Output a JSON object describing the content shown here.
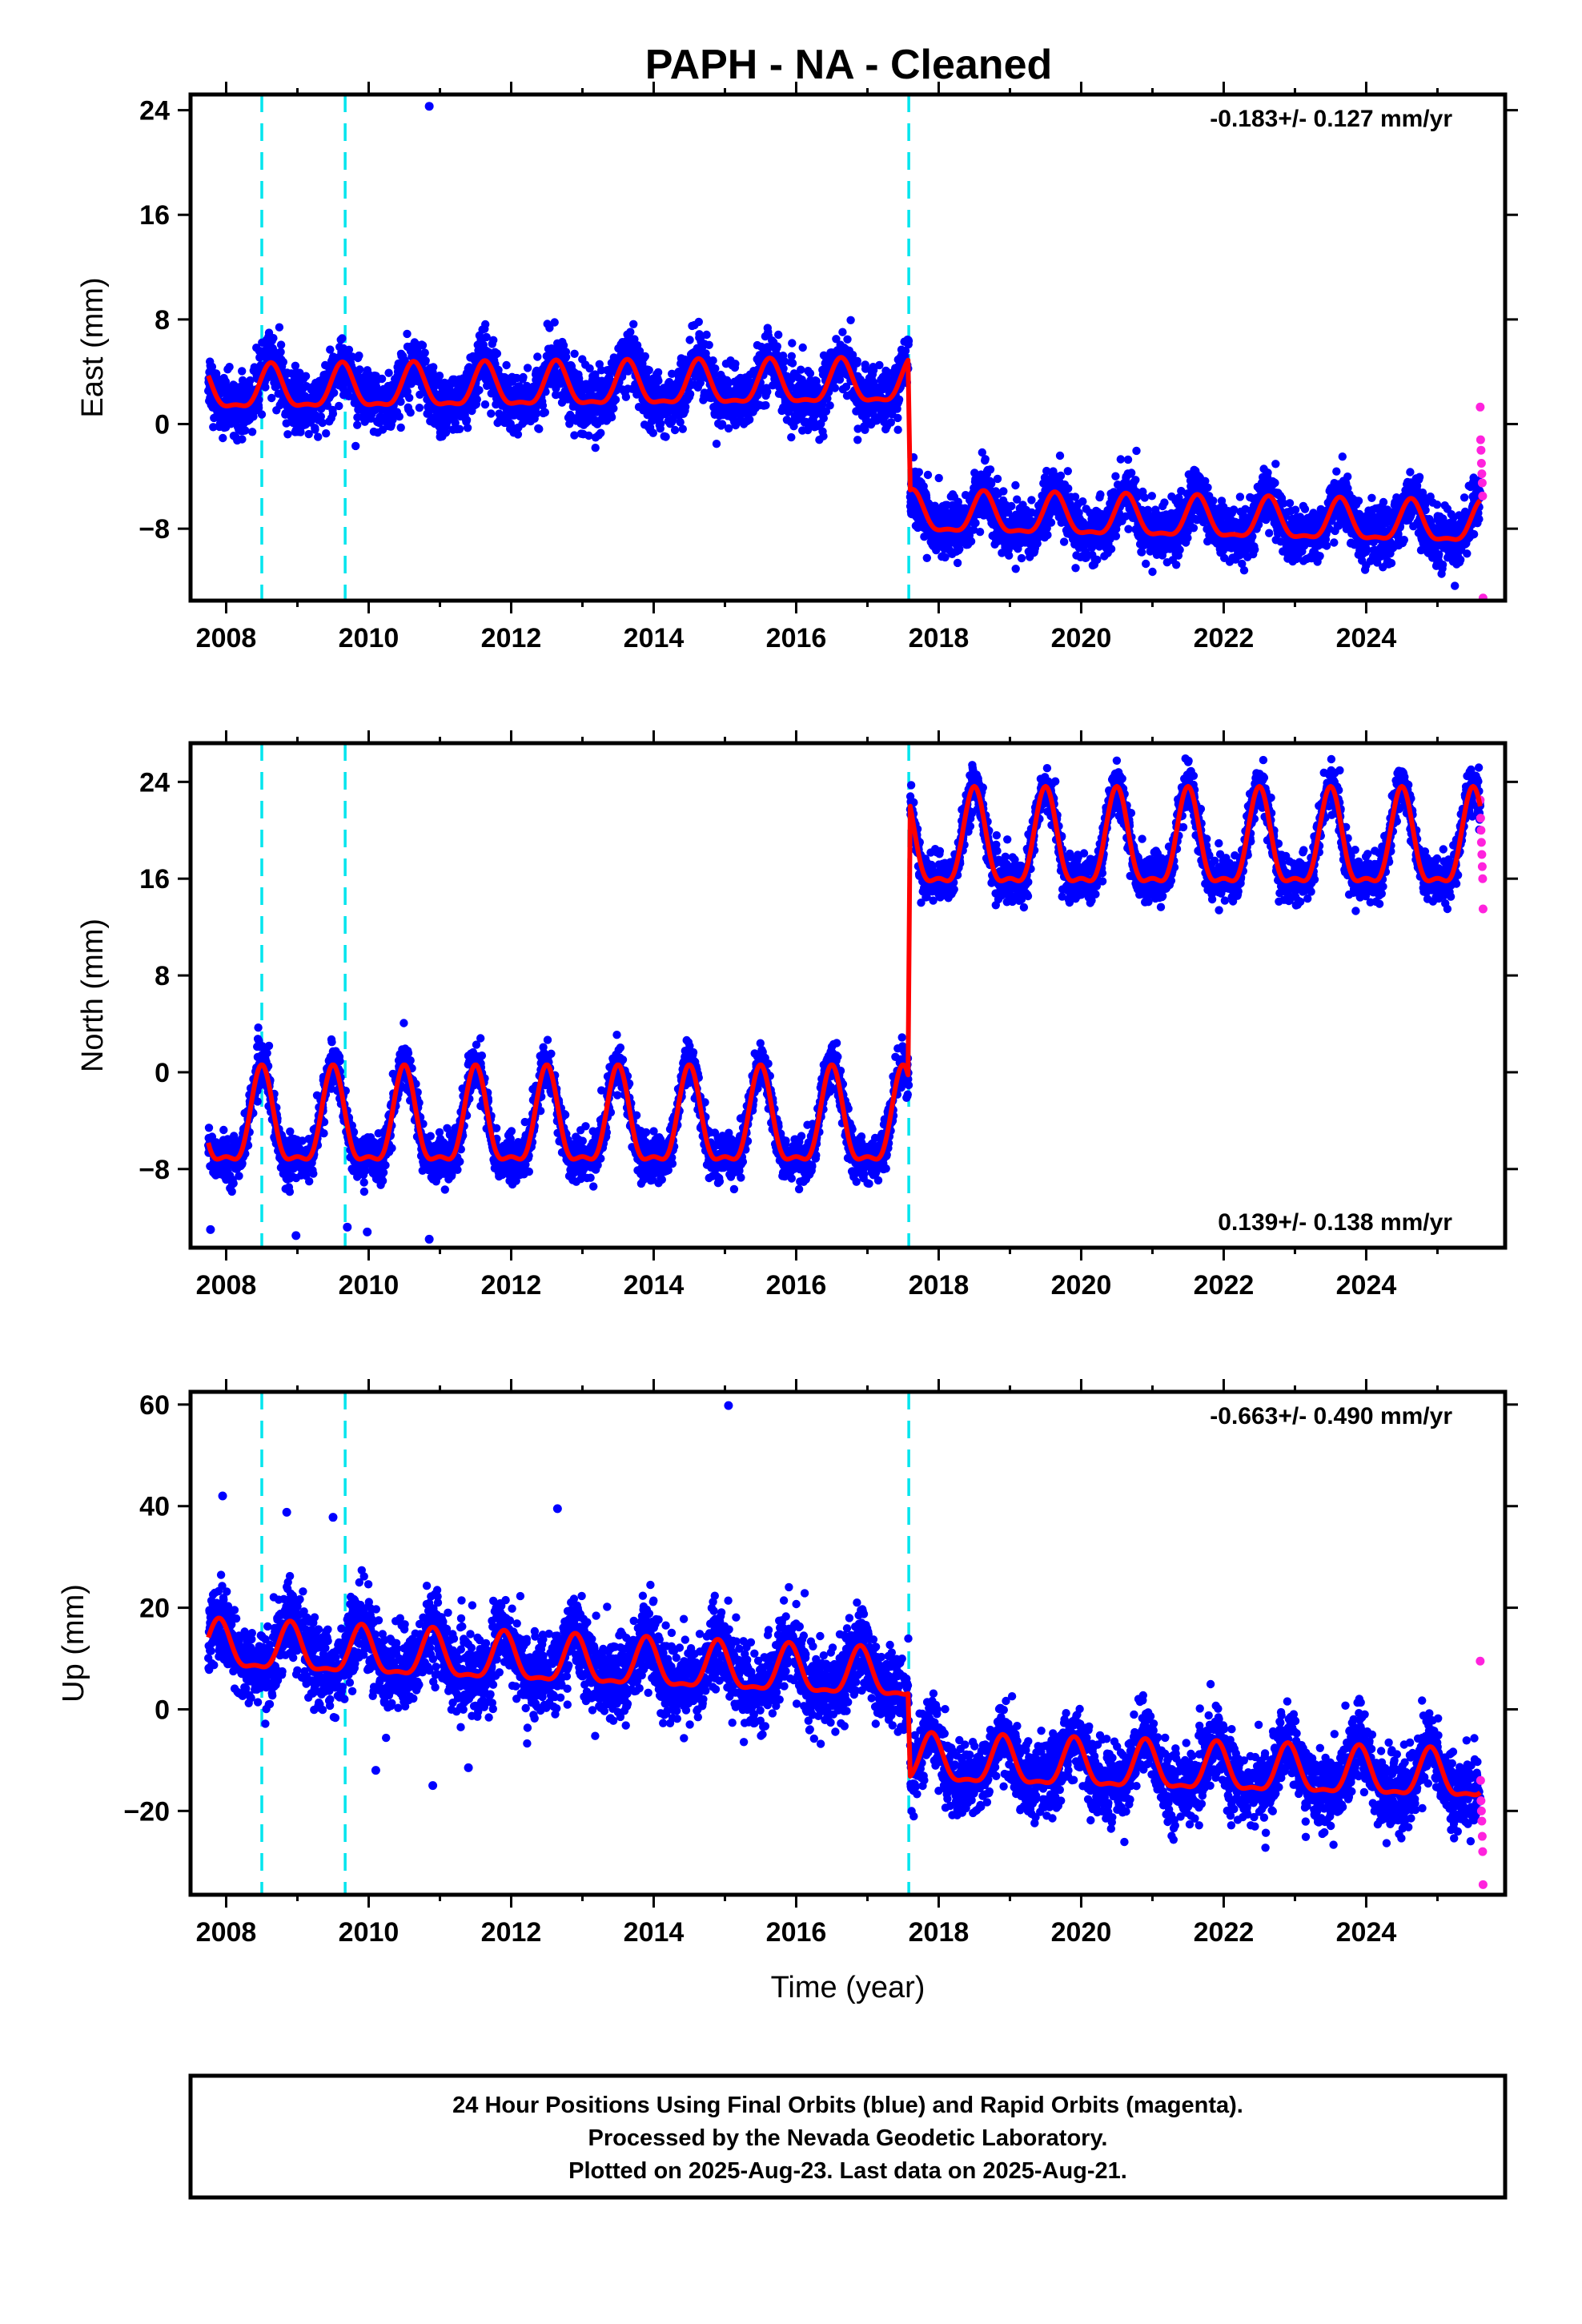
{
  "title": "PAPH  - NA - Cleaned",
  "footer": {
    "line1": "24 Hour Positions Using Final Orbits (blue) and Rapid Orbits (magenta).",
    "line2": "Processed by the Nevada Geodetic Laboratory.",
    "line3": "Plotted on 2025-Aug-23. Last data on 2025-Aug-21."
  },
  "colors": {
    "final_orbits": "#0000ff",
    "rapid_orbits": "#ff22dd",
    "model": "#ff0000",
    "equipment_change": "#00e5ee",
    "frame": "#000000"
  },
  "chart_data": [
    {
      "type": "scatter",
      "component": "east",
      "ylabel": "East (mm)",
      "xlabel": "",
      "xlim": [
        2007.5,
        2025.95
      ],
      "ylim": [
        -13.5,
        25.2
      ],
      "x_ticks": [
        2008,
        2010,
        2012,
        2014,
        2016,
        2018,
        2020,
        2022,
        2024
      ],
      "y_ticks": [
        -8,
        0,
        8,
        16,
        24
      ],
      "rate": "-0.183+/- 0.127 mm/yr",
      "rate_position": "top-right",
      "grid": false,
      "equipment_changes": [
        2008.5,
        2009.67,
        2017.58
      ],
      "series": [
        {
          "type": "scatter",
          "x_range": [
            2007.75,
            2017.58
          ],
          "mean": 2.5,
          "annual_amplitude": 1.6,
          "peak_phase": 0.63,
          "noise": 1.6,
          "trend_per_year": 0.05,
          "color": "#0000ff"
        },
        {
          "type": "scatter",
          "x_range": [
            2017.6,
            2025.6
          ],
          "mean": -7.0,
          "annual_amplitude": 1.5,
          "peak_phase": 0.63,
          "noise": 1.5,
          "trend_per_year": -0.1,
          "color": "#0000ff"
        },
        {
          "type": "scatter",
          "x_range": [
            2025.6,
            2025.64
          ],
          "values": [
            1.3,
            -1.2,
            -2.0,
            -3.0,
            -3.8,
            -4.5,
            -5.5,
            -13.3
          ],
          "color": "#ff22dd"
        },
        {
          "type": "line",
          "name": "model",
          "color": "#ff0000"
        }
      ],
      "outliers": [
        [
          2010.85,
          24.3
        ]
      ]
    },
    {
      "type": "scatter",
      "component": "north",
      "ylabel": "North (mm)",
      "xlabel": "",
      "xlim": [
        2007.5,
        2025.95
      ],
      "ylim": [
        -14.5,
        27.2
      ],
      "x_ticks": [
        2008,
        2010,
        2012,
        2014,
        2016,
        2018,
        2020,
        2022,
        2024
      ],
      "y_ticks": [
        -8,
        0,
        8,
        16,
        24
      ],
      "rate": "0.139+/- 0.138 mm/yr",
      "rate_position": "bottom-right",
      "grid": false,
      "equipment_changes": [
        2008.5,
        2009.67,
        2017.58
      ],
      "series": [
        {
          "type": "scatter",
          "x_range": [
            2007.75,
            2017.58
          ],
          "mean": -4.5,
          "annual_amplitude": 3.8,
          "peak_phase": 0.5,
          "noise": 1.3,
          "trend_per_year": 0.0,
          "color": "#0000ff"
        },
        {
          "type": "scatter",
          "x_range": [
            2017.6,
            2025.6
          ],
          "mean": 18.5,
          "annual_amplitude": 3.8,
          "peak_phase": 0.5,
          "noise": 1.3,
          "trend_per_year": 0.0,
          "color": "#0000ff"
        },
        {
          "type": "scatter",
          "x_range": [
            2025.6,
            2025.64
          ],
          "values": [
            22.5,
            21.0,
            20.0,
            19.0,
            18.0,
            17.0,
            16.0,
            13.5
          ],
          "color": "#ff22dd"
        },
        {
          "type": "line",
          "name": "model",
          "color": "#ff0000"
        }
      ],
      "outliers": [
        [
          2007.78,
          -13.0
        ],
        [
          2008.98,
          -13.5
        ],
        [
          2009.7,
          -12.8
        ],
        [
          2009.98,
          -13.2
        ],
        [
          2010.85,
          -13.8
        ]
      ]
    },
    {
      "type": "scatter",
      "component": "up",
      "ylabel": "Up (mm)",
      "xlabel": "Time (year)",
      "xlim": [
        2007.5,
        2025.95
      ],
      "ylim": [
        -36.5,
        62.5
      ],
      "x_ticks": [
        2008,
        2010,
        2012,
        2014,
        2016,
        2018,
        2020,
        2022,
        2024
      ],
      "y_ticks": [
        -20,
        0,
        20,
        40,
        60
      ],
      "rate": "-0.663+/- 0.490 mm/yr",
      "rate_position": "top-right",
      "grid": false,
      "equipment_changes": [
        2008.5,
        2009.67,
        2017.58
      ],
      "series": [
        {
          "type": "scatter",
          "x_range": [
            2007.75,
            2017.58
          ],
          "mean": 12.0,
          "annual_amplitude": 4.5,
          "peak_phase": 0.9,
          "noise": 5.5,
          "trend_per_year": -0.6,
          "color": "#0000ff"
        },
        {
          "type": "scatter",
          "x_range": [
            2017.6,
            2025.6
          ],
          "mean": -10.5,
          "annual_amplitude": 4.5,
          "peak_phase": 0.9,
          "noise": 5.0,
          "trend_per_year": -0.4,
          "color": "#0000ff"
        },
        {
          "type": "scatter",
          "x_range": [
            2025.6,
            2025.64
          ],
          "values": [
            9.5,
            -14.0,
            -18.0,
            -20.0,
            -22.0,
            -25.0,
            -28.0,
            -34.5
          ],
          "color": "#ff22dd"
        },
        {
          "type": "line",
          "name": "model",
          "color": "#ff0000"
        }
      ],
      "outliers": [
        [
          2015.05,
          59.8
        ],
        [
          2007.95,
          42.0
        ],
        [
          2012.65,
          39.5
        ],
        [
          2008.85,
          38.8
        ],
        [
          2009.5,
          37.8
        ],
        [
          2010.9,
          -15.0
        ],
        [
          2011.4,
          -11.5
        ],
        [
          2010.1,
          -12.0
        ]
      ]
    }
  ]
}
